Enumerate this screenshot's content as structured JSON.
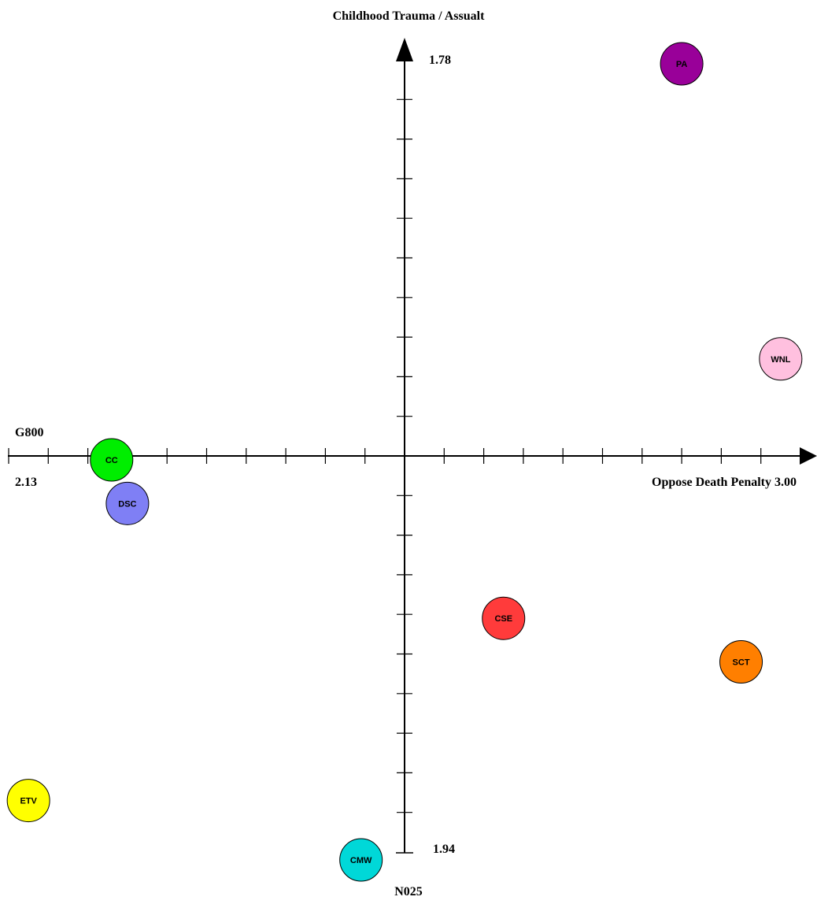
{
  "chart_data": {
    "type": "scatter",
    "title": "Childhood Trauma / Assualt",
    "bottom_label": "N025",
    "x_axis": {
      "name": "Oppose Death Penalty",
      "min_label": "2.13",
      "max_label": "3.00",
      "left_name": "G800",
      "range": [
        -10,
        10
      ],
      "tick_step": 1
    },
    "y_axis": {
      "max_label": "1.78",
      "min_label": "1.94",
      "range": [
        -10,
        10
      ],
      "tick_step": 1
    },
    "grid": false,
    "points": [
      {
        "label": "PA",
        "x": 7.0,
        "y": 9.9,
        "color": "#990099"
      },
      {
        "label": "WNL",
        "x": 9.5,
        "y": 2.45,
        "color": "#ffc0df"
      },
      {
        "label": "CC",
        "x": -7.4,
        "y": -0.1,
        "color": "#00ee00"
      },
      {
        "label": "DSC",
        "x": -7.0,
        "y": -1.2,
        "color": "#7f7ff5"
      },
      {
        "label": "CSE",
        "x": 2.5,
        "y": -4.1,
        "color": "#ff3b3b"
      },
      {
        "label": "SCT",
        "x": 8.5,
        "y": -5.2,
        "color": "#ff7f00"
      },
      {
        "label": "ETV",
        "x": -9.5,
        "y": -8.7,
        "color": "#ffff00"
      },
      {
        "label": "CMW",
        "x": -1.1,
        "y": -10.2,
        "color": "#00d8d8"
      }
    ]
  }
}
